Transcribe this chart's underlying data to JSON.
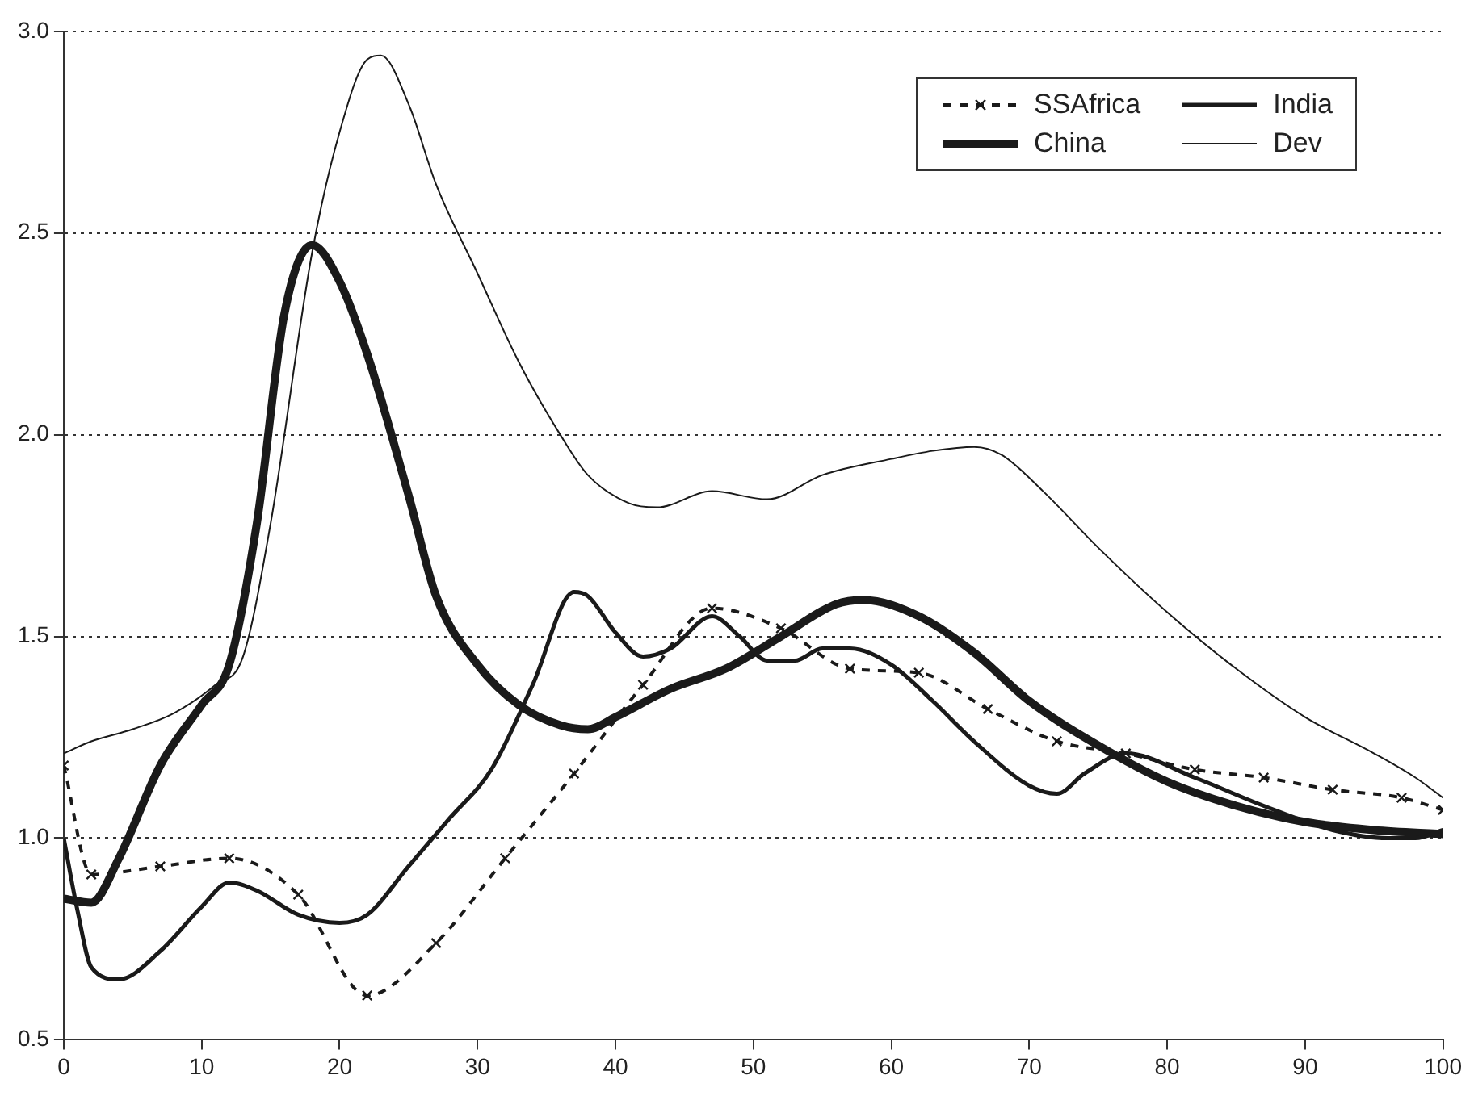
{
  "chart_data": {
    "type": "line",
    "xlim": [
      0,
      100
    ],
    "xticks": [
      0,
      10,
      20,
      30,
      40,
      50,
      60,
      70,
      80,
      90,
      100
    ],
    "ylim": [
      0.5,
      3
    ],
    "yticks": [
      {
        "value": 0.5,
        "label": "0.5"
      },
      {
        "value": 1,
        "label": "1.0"
      },
      {
        "value": 1.5,
        "label": "1.5"
      },
      {
        "value": 2,
        "label": "2.0"
      },
      {
        "value": 2.5,
        "label": "2.5"
      },
      {
        "value": 3,
        "label": "3.0"
      }
    ],
    "grid": "y",
    "legend": "top right",
    "series": [
      {
        "name": "SSAfrica",
        "color": "#1a1a1a",
        "marker": "cross",
        "line_style": "dashed",
        "x": [
          0,
          2,
          7,
          12,
          17,
          22,
          27,
          32,
          37,
          42,
          47,
          52,
          57,
          62,
          67,
          72,
          77,
          82,
          87,
          92,
          97,
          100
        ],
        "values": [
          1.18,
          0.91,
          0.93,
          0.95,
          0.86,
          0.61,
          0.74,
          0.95,
          1.16,
          1.38,
          1.57,
          1.52,
          1.42,
          1.41,
          1.32,
          1.24,
          1.21,
          1.17,
          1.15,
          1.12,
          1.1,
          1.07
        ]
      },
      {
        "name": "India",
        "color": "#1a1a1a",
        "marker": "none",
        "line_style": "solid",
        "x": [
          0,
          1,
          2,
          4,
          7,
          10,
          12,
          14,
          17,
          20,
          22,
          25,
          28,
          31,
          34,
          37,
          38,
          40,
          42,
          44,
          47,
          49,
          51,
          53,
          55,
          57,
          60,
          63,
          66,
          70,
          72,
          74,
          77,
          82,
          87,
          92,
          96,
          98,
          100
        ],
        "values": [
          1.0,
          0.82,
          0.68,
          0.65,
          0.72,
          0.83,
          0.89,
          0.87,
          0.81,
          0.79,
          0.81,
          0.93,
          1.05,
          1.17,
          1.38,
          1.61,
          1.6,
          1.51,
          1.45,
          1.47,
          1.55,
          1.5,
          1.44,
          1.44,
          1.47,
          1.47,
          1.43,
          1.34,
          1.24,
          1.13,
          1.11,
          1.16,
          1.21,
          1.15,
          1.08,
          1.02,
          1.0,
          1.0,
          1.02
        ]
      },
      {
        "name": "China",
        "color": "#1a1a1a",
        "marker": "none",
        "line_style": "solid",
        "x": [
          0,
          2,
          4,
          7,
          10,
          12,
          14,
          16,
          18,
          20,
          22,
          25,
          27,
          30,
          33,
          36,
          38,
          40,
          44,
          48,
          52,
          56,
          58,
          62,
          66,
          70,
          75,
          80,
          85,
          90,
          95,
          100
        ],
        "values": [
          0.85,
          0.84,
          0.95,
          1.18,
          1.33,
          1.43,
          1.78,
          2.3,
          2.47,
          2.38,
          2.2,
          1.85,
          1.6,
          1.43,
          1.33,
          1.28,
          1.27,
          1.3,
          1.37,
          1.42,
          1.5,
          1.58,
          1.59,
          1.55,
          1.46,
          1.34,
          1.23,
          1.14,
          1.08,
          1.04,
          1.02,
          1.01
        ]
      },
      {
        "name": "Dev",
        "color": "#1a1a1a",
        "marker": "none",
        "line_style": "solid",
        "x": [
          0,
          2,
          5,
          8,
          11,
          13,
          15,
          18,
          20,
          22,
          23,
          25,
          27,
          30,
          33,
          36,
          38,
          41,
          43,
          47,
          51,
          55,
          60,
          63,
          66,
          68,
          71,
          75,
          80,
          85,
          90,
          95,
          98,
          100
        ],
        "values": [
          1.21,
          1.24,
          1.27,
          1.31,
          1.38,
          1.45,
          1.78,
          2.45,
          2.75,
          2.93,
          2.94,
          2.82,
          2.62,
          2.4,
          2.18,
          2.0,
          1.9,
          1.83,
          1.82,
          1.86,
          1.84,
          1.9,
          1.94,
          1.96,
          1.97,
          1.95,
          1.86,
          1.72,
          1.56,
          1.42,
          1.3,
          1.21,
          1.15,
          1.1
        ]
      }
    ]
  }
}
